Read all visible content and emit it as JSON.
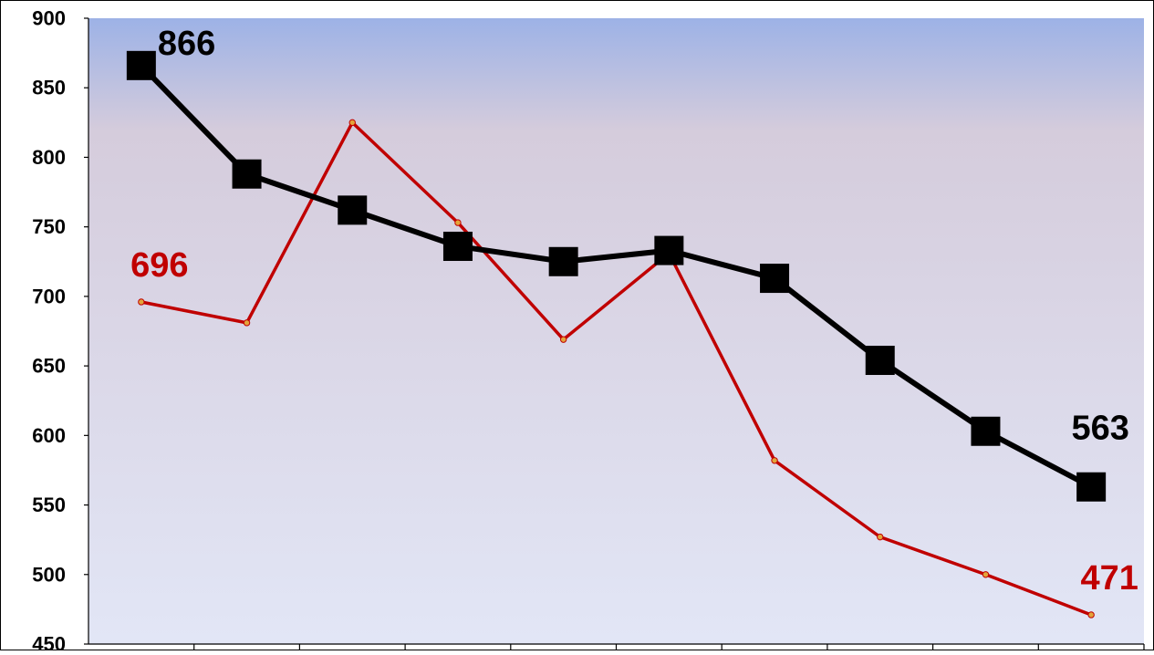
{
  "chart_data": {
    "type": "line",
    "title": "",
    "xlabel": "",
    "ylabel": "",
    "ylim": [
      450,
      900
    ],
    "y_ticks": [
      "900",
      "850",
      "800",
      "750",
      "700",
      "650",
      "600",
      "550",
      "500",
      "450"
    ],
    "x_count": 10,
    "grid": false,
    "legend": "none",
    "background": {
      "top": "#9db2e6",
      "mid": "#d5ccdc",
      "bottom": "#e2e6f6"
    },
    "series": [
      {
        "color": "#000000",
        "marker": "square",
        "values": [
          866,
          788,
          762,
          736,
          725,
          733,
          713,
          654,
          603,
          563
        ],
        "data_labels": [
          {
            "index": 0,
            "text": "866"
          },
          {
            "index": 9,
            "text": "563"
          }
        ]
      },
      {
        "color": "#c00000",
        "marker": "dot",
        "values": [
          696,
          681,
          825,
          753,
          669,
          731,
          582,
          527,
          500,
          471
        ],
        "data_labels": [
          {
            "index": 0,
            "text": "696"
          },
          {
            "index": 9,
            "text": "471"
          }
        ]
      }
    ]
  }
}
